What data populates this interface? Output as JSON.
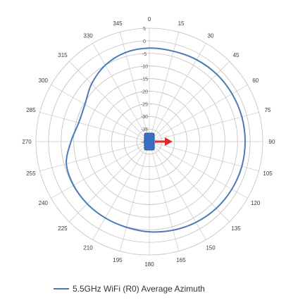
{
  "chart_data": {
    "type": "line",
    "projection": "polar",
    "grid": true,
    "legend_position": "bottom",
    "angle_ticks": [
      0,
      15,
      30,
      45,
      60,
      75,
      90,
      105,
      120,
      135,
      150,
      165,
      180,
      195,
      210,
      225,
      240,
      255,
      270,
      285,
      300,
      315,
      330,
      345
    ],
    "radial_tick_labels": [
      "5",
      "0",
      "-5",
      "-10",
      "-15",
      "-20",
      "-25",
      "-30",
      "-35",
      "-40"
    ],
    "radial_range": [
      -40,
      5
    ],
    "series": [
      {
        "name": "5.5GHz WiFi (R0) Average Azimuth",
        "color": "#4a7bb7",
        "theta": [
          0,
          15,
          30,
          45,
          60,
          75,
          90,
          105,
          120,
          135,
          150,
          165,
          180,
          195,
          210,
          225,
          240,
          255,
          270,
          285,
          300,
          315,
          330,
          345,
          360
        ],
        "r": [
          -2.9,
          -2.9,
          -2.5,
          -2.2,
          -2.1,
          -2.0,
          -2.0,
          -2.0,
          -2.2,
          -2.5,
          -3.0,
          -3.6,
          -4.2,
          -4.8,
          -5.0,
          -5.1,
          -5.3,
          -5.9,
          -8.9,
          -11.0,
          -10.5,
          -7.6,
          -5.0,
          -3.4,
          -2.9
        ]
      }
    ]
  },
  "device_marker": {
    "color": "#3a6fc4",
    "arrow_color": "#e3262b"
  }
}
